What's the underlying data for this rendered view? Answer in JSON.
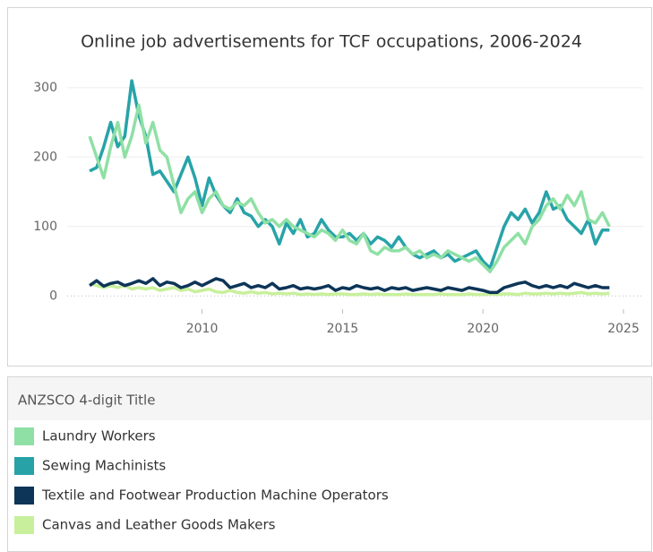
{
  "chart_data": {
    "type": "line",
    "title": "Online job advertisements for TCF occupations, 2006-2024",
    "legend_title": "ANZSCO 4-digit Title",
    "x": [
      2006,
      2006.25,
      2006.5,
      2006.75,
      2007,
      2007.25,
      2007.5,
      2007.75,
      2008,
      2008.25,
      2008.5,
      2008.75,
      2009,
      2009.25,
      2009.5,
      2009.75,
      2010,
      2010.25,
      2010.5,
      2010.75,
      2011,
      2011.25,
      2011.5,
      2011.75,
      2012,
      2012.25,
      2012.5,
      2012.75,
      2013,
      2013.25,
      2013.5,
      2013.75,
      2014,
      2014.25,
      2014.5,
      2014.75,
      2015,
      2015.25,
      2015.5,
      2015.75,
      2016,
      2016.25,
      2016.5,
      2016.75,
      2017,
      2017.25,
      2017.5,
      2017.75,
      2018,
      2018.25,
      2018.5,
      2018.75,
      2019,
      2019.25,
      2019.5,
      2019.75,
      2020,
      2020.25,
      2020.5,
      2020.75,
      2021,
      2021.25,
      2021.5,
      2021.75,
      2022,
      2022.25,
      2022.5,
      2022.75,
      2023,
      2023.25,
      2023.5,
      2023.75,
      2024,
      2024.25,
      2024.5
    ],
    "series": [
      {
        "name": "Laundry Workers",
        "color": "#8fe0a4",
        "values": [
          230,
          200,
          170,
          215,
          250,
          200,
          230,
          275,
          220,
          250,
          210,
          200,
          160,
          120,
          140,
          150,
          120,
          140,
          150,
          130,
          125,
          135,
          130,
          140,
          120,
          105,
          110,
          100,
          110,
          100,
          95,
          90,
          85,
          95,
          90,
          80,
          95,
          80,
          75,
          90,
          65,
          60,
          70,
          65,
          65,
          70,
          60,
          65,
          55,
          60,
          55,
          65,
          60,
          55,
          50,
          55,
          45,
          35,
          50,
          70,
          80,
          90,
          75,
          100,
          110,
          130,
          140,
          125,
          145,
          130,
          150,
          110,
          105,
          120,
          100
        ]
      },
      {
        "name": "Sewing Machinists",
        "color": "#27a3a8",
        "values": [
          180,
          185,
          215,
          250,
          215,
          230,
          310,
          260,
          230,
          175,
          180,
          165,
          150,
          175,
          200,
          170,
          130,
          170,
          145,
          130,
          120,
          140,
          120,
          115,
          100,
          110,
          100,
          75,
          105,
          90,
          110,
          85,
          90,
          110,
          95,
          85,
          85,
          90,
          80,
          90,
          75,
          85,
          80,
          70,
          85,
          70,
          60,
          55,
          60,
          65,
          55,
          60,
          50,
          55,
          60,
          65,
          50,
          40,
          70,
          100,
          120,
          110,
          125,
          105,
          120,
          150,
          125,
          130,
          110,
          100,
          90,
          110,
          75,
          95,
          95
        ]
      },
      {
        "name": "Textile and Footwear Production Machine Operators",
        "color": "#0d3558",
        "values": [
          15,
          22,
          14,
          18,
          20,
          15,
          18,
          22,
          18,
          25,
          15,
          20,
          18,
          12,
          15,
          20,
          15,
          20,
          25,
          22,
          12,
          15,
          18,
          12,
          15,
          12,
          18,
          10,
          12,
          15,
          10,
          12,
          10,
          12,
          15,
          8,
          12,
          10,
          15,
          12,
          10,
          12,
          8,
          12,
          10,
          12,
          8,
          10,
          12,
          10,
          8,
          12,
          10,
          8,
          12,
          10,
          8,
          5,
          5,
          12,
          15,
          18,
          20,
          15,
          12,
          15,
          12,
          15,
          12,
          18,
          15,
          12,
          15,
          12,
          12
        ]
      },
      {
        "name": "Canvas and Leather Goods Makers",
        "color": "#c8f09c",
        "values": [
          18,
          15,
          12,
          15,
          12,
          15,
          10,
          12,
          10,
          12,
          8,
          10,
          12,
          8,
          10,
          6,
          8,
          10,
          6,
          5,
          8,
          5,
          4,
          6,
          4,
          5,
          3,
          4,
          3,
          4,
          2,
          3,
          2,
          3,
          2,
          3,
          3,
          2,
          2,
          3,
          2,
          3,
          2,
          2,
          2,
          3,
          2,
          2,
          2,
          2,
          3,
          2,
          2,
          2,
          3,
          2,
          2,
          3,
          2,
          3,
          3,
          2,
          4,
          3,
          3,
          4,
          3,
          4,
          3,
          4,
          5,
          3,
          4,
          3,
          4
        ]
      }
    ],
    "xlim": [
      2005.2,
      2025.7
    ],
    "xticks": [
      2010,
      2015,
      2020,
      2025
    ],
    "ylim": [
      -19,
      323
    ],
    "yticks": [
      0,
      100,
      200,
      300
    ],
    "grid": true
  }
}
